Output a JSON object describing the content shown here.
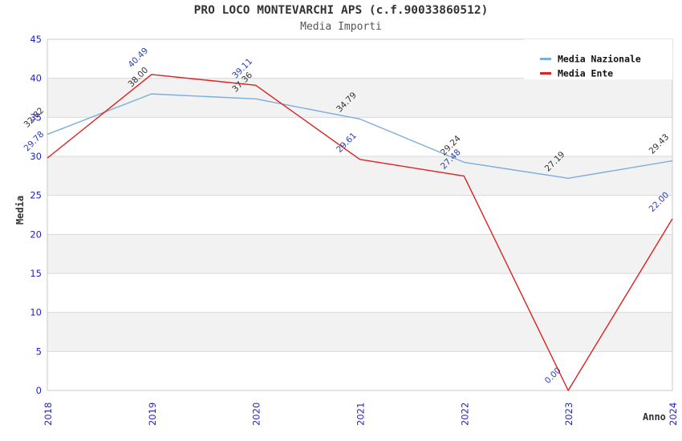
{
  "header": {
    "title": "PRO LOCO MONTEVARCHI APS (c.f.90033860512)",
    "subtitle": "Media Importi"
  },
  "chart_data": {
    "type": "line",
    "title": "PRO LOCO MONTEVARCHI APS (c.f.90033860512)",
    "subtitle": "Media Importi",
    "xlabel": "Anno",
    "ylabel": "Media",
    "categories": [
      "2018",
      "2019",
      "2020",
      "2021",
      "2022",
      "2023",
      "2024"
    ],
    "series": [
      {
        "name": "Media Nazionale",
        "color": "#79aede",
        "label_color": "#333333",
        "values": [
          32.82,
          38.0,
          37.36,
          34.79,
          29.24,
          27.19,
          29.43
        ]
      },
      {
        "name": "Media Ente",
        "color": "#e01f1f",
        "label_color": "#2b3faf",
        "values": [
          29.78,
          40.49,
          39.11,
          29.61,
          27.48,
          0.0,
          22.0
        ]
      }
    ],
    "ylim": [
      0,
      45
    ],
    "ytick_step": 5,
    "grid": true,
    "legend_position": "top-right",
    "band_colors": [
      "#ffffff",
      "#f2f2f2"
    ],
    "colors": {
      "tick_label": "#2222cc",
      "gridline": "#dadada",
      "plot_border": "#c8c8c8"
    }
  }
}
